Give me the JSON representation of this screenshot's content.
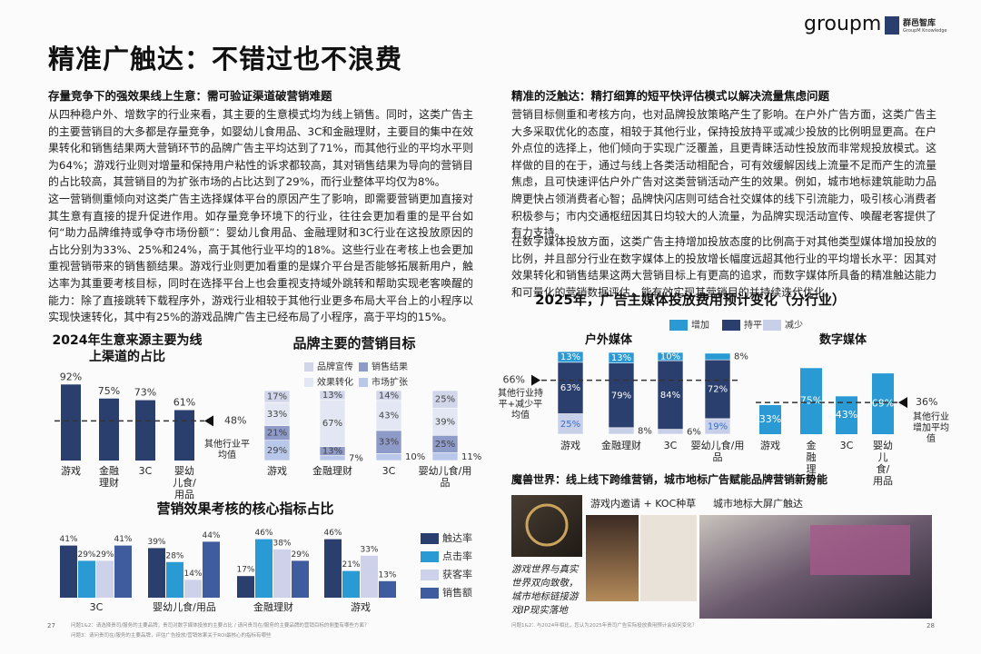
{
  "header": {
    "title": "精准广触达：不错过也不浪费",
    "logo": "groupm",
    "logo2": "群邑智库",
    "logo2_sub": "GroupM Knowledge"
  },
  "left": {
    "heading": "存量竞争下的强效果线上生意：需可验证渠道破营销难题",
    "paragraphs": [
      "从四种稳户外、增数字的行业来看，其主要的生意模式均为线上销售。同时，这类广告主的主要营销目的大多都是存量竞争，如婴幼儿食用品、3C和金融理财，主要目的集中在效果转化和销售结果两大营销环节的品牌广告主平均达到了71%，而其他行业的平均水平则为64%；游戏行业则对增量和保持用户粘性的诉求都较高，其对销售结果为导向的营销目的占比较高，其营销目的为扩张市场的占比达到了29%，而行业整体平均仅为8%。",
      "这一营销侧重倾向对这类广告主选择媒体平台的原因产生了影响，即需要营销更加直接对其生意有直接的提升促进作用。如存量竞争环境下的行业，往往会更加看重的是平台如何“助力品牌维持或争夺市场份额”：婴幼儿食用品、金融理财和3C行业在这投放原因的占比分别为33%、25%和24%，高于其他行业平均的18%。这些行业在考核上也会更加重视营销带来的销售额结果。游戏行业则更加看重的是媒介平台是否能够拓展新用户，触达率为其重要考核目标，同时在选择平台上也会重视支持域外跳转和帮助实现老客唤醒的能力：除了直接跳转下载程序外，游戏行业相较于其他行业更多布局大平台上的小程序以实现快速转化，其中有25%的游戏品牌广告主已经布局了小程序，高于平均的15%。"
    ]
  },
  "right": {
    "heading": "精准的泛触达：精打细算的短平快评估模式以解决流量焦虑问题",
    "paragraphs": [
      "营销目标侧重和考核方向，也对品牌投放策略产生了影响。在户外广告方面，这类广告主大多采取优化的态度，相较于其他行业，保持投放持平或减少投放的比例明显更高。在户外点位的选择上，他们倾向于实现广泛覆盖，且更青睐活动性投放而非常规投放模式。这样做的目的在于，通过与线上各类活动相配合，可有效缓解因线上流量不足而产生的流量焦虑，且可快速评估户外广告对这类营销活动产生的效果。例如，城市地标建筑能助力品牌更快占领消费者心智；品牌快闪店则可结合社交媒体的线下引流能力，吸引核心消费者积极参与；市内交通枢纽因其日均较大的人流量，为品牌实现活动宣传、唤醒老客提供了有力支持。",
      "在数字媒体投放方面，这类广告主持增加投放态度的比例高于对其他类型媒体增加投放的比例，并且部分行业在数字媒体上的投放增长幅度远超其他行业的平均增长水平：因其对效果转化和销售结果这两大营销目标上有更高的追求，而数字媒体所具备的精准触达能力和可量化的营销数据评估，能有效实现其营销目的并持续迭代优化。"
    ]
  },
  "figure_title": "2025年，广告主媒体投放费用预计变化（分行业）",
  "chart_data": [
    {
      "type": "bar",
      "title": "2024年生意来源主要为线上渠道的占比",
      "categories": [
        "游戏",
        "金融理财",
        "3C",
        "婴幼儿食/用品"
      ],
      "values": [
        92,
        75,
        73,
        61
      ],
      "value_labels": [
        "92%",
        "75%",
        "73%",
        "61%"
      ],
      "color": "#2b3f6e",
      "ylim": [
        0,
        100
      ],
      "reference": {
        "value": 48,
        "label": "48%",
        "note": "其他行业平均值"
      }
    },
    {
      "type": "stacked_bar",
      "title": "品牌主要的营销目标",
      "categories": [
        "游戏",
        "金融理财",
        "3C",
        "婴幼儿食/用品"
      ],
      "series": [
        {
          "name": "市场扩张",
          "color": "#b9c7ea",
          "values": [
            29,
            7,
            10,
            11
          ],
          "value_labels": [
            "29%",
            "7%",
            "10%",
            "11%"
          ]
        },
        {
          "name": "销售结果",
          "color": "#8e9ac7",
          "values": [
            21,
            13,
            33,
            25
          ],
          "value_labels": [
            "21%",
            "13%",
            "33%",
            "25%"
          ]
        },
        {
          "name": "效果转化",
          "color": "#e3e6f3",
          "values": [
            33,
            67,
            43,
            39
          ],
          "value_labels": [
            "33%",
            "67%",
            "43%",
            "39%"
          ]
        },
        {
          "name": "品牌宣传",
          "color": "#d2d6ea",
          "values": [
            17,
            13,
            14,
            25
          ],
          "value_labels": [
            "17%",
            "13%",
            "14%",
            "25%"
          ]
        }
      ],
      "ylim": [
        0,
        100
      ]
    },
    {
      "type": "grouped_bar",
      "title": "营销效果考核的核心指标占比",
      "categories": [
        "3C",
        "婴幼儿食/用品",
        "金融理财",
        "游戏"
      ],
      "series": [
        {
          "name": "触达率",
          "color": "#2b3f6e",
          "values": [
            41,
            39,
            17,
            46
          ],
          "value_labels": [
            "41%",
            "39%",
            "17%",
            "46%"
          ]
        },
        {
          "name": "点击率",
          "color": "#2a9ad4",
          "values": [
            29,
            28,
            46,
            21
          ],
          "value_labels": [
            "29%",
            "28%",
            "46%",
            "21%"
          ]
        },
        {
          "name": "获客率",
          "color": "#cdd1ea",
          "values": [
            29,
            14,
            38,
            33
          ],
          "value_labels": [
            "29%",
            "14%",
            "38%",
            "33%"
          ]
        },
        {
          "name": "销售额",
          "color": "#3f5c9e",
          "values": [
            41,
            44,
            29,
            13
          ],
          "value_labels": [
            "41%",
            "44%",
            "29%",
            "13%"
          ]
        }
      ],
      "ylim": [
        0,
        50
      ]
    },
    {
      "type": "stacked_bar",
      "title": "户外媒体",
      "categories": [
        "游戏",
        "金融理财",
        "3C",
        "婴幼儿食/用品"
      ],
      "series": [
        {
          "name": "减少",
          "color": "#c8cfe9",
          "label_color": "#3a6fc4",
          "values": [
            25,
            8,
            6,
            19
          ],
          "value_labels": [
            "25%",
            "8%",
            "6%",
            "19%"
          ]
        },
        {
          "name": "持平",
          "color": "#2b3f6e",
          "label_color": "#ffffff",
          "values": [
            63,
            79,
            84,
            72
          ],
          "value_labels": [
            "63%",
            "79%",
            "84%",
            "72%"
          ]
        },
        {
          "name": "增加",
          "color": "#2a9ad4",
          "label_color": "#ffffff",
          "values": [
            13,
            13,
            10,
            8
          ],
          "value_labels": [
            "13%",
            "13%",
            "10%",
            "8%"
          ]
        }
      ],
      "ylim": [
        0,
        100
      ],
      "reference": {
        "value": 66,
        "label": "66%",
        "note": "其他行业持平+减少平均值"
      }
    },
    {
      "type": "bar",
      "title": "数字媒体",
      "categories": [
        "游戏",
        "金融理财",
        "3C",
        "婴幼儿食/用品"
      ],
      "values": [
        33,
        75,
        43,
        69
      ],
      "value_labels": [
        "33%",
        "75%",
        "43%",
        "69%"
      ],
      "color": "#2a9ad4",
      "label_color": "#ffffff",
      "label_inside": true,
      "ylim": [
        0,
        100
      ],
      "reference": {
        "value": 36,
        "label": "36%",
        "note": "其他行业增加平均值"
      }
    }
  ],
  "case": {
    "heading": "魔兽世界：线上线下跨维营销，城市地标广告赋能品牌营销新势能",
    "captions": [
      "游戏内邀请 + KOC种草",
      "城市地标大屏广触达"
    ],
    "note": "游戏世界与真实世界双向致敬，城市地标链接游戏IP现实落地"
  },
  "footer": {
    "left_page": "27",
    "left_notes": [
      "问题1&2：请选择贵司/服务的主要品牌，贵司对数字媒体投放的主要占比 / 请问贵司在/服务的主要品牌的营销目标的侧重有哪些方面？",
      "问题3：请问贵司在/服务的主要品牌，评估广告投放/营销效果关于ROI最核心的指标有哪些"
    ],
    "right_note": "问题1&2：与2024年相比，您认为2025年贵司广告实际投放费用预计会如何变化？",
    "right_page": "28"
  }
}
